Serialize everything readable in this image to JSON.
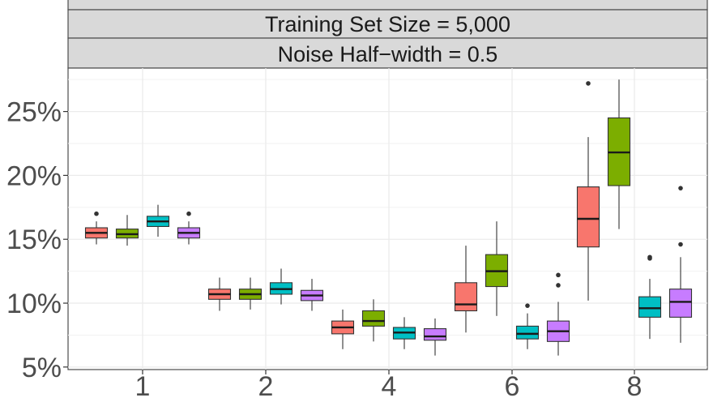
{
  "chart_data": {
    "type": "boxplot",
    "facet_strips": [
      "Training Set Size = 5,000",
      "Noise Half−width = 0.5"
    ],
    "categories": [
      "1",
      "2",
      "4",
      "6",
      "8"
    ],
    "y_tick_labels": [
      "5%",
      "10%",
      "15%",
      "20%",
      "25%"
    ],
    "y_ticks": [
      5,
      10,
      15,
      20,
      25
    ],
    "ylim": [
      4.8,
      28.4
    ],
    "grid": true,
    "legend": "none",
    "series": [
      {
        "color": "#f8766d",
        "boxes": [
          {
            "min": 14.6,
            "q1": 15.1,
            "median": 15.5,
            "q3": 15.9,
            "max": 16.4,
            "outliers": [
              17.0
            ]
          },
          {
            "min": 9.4,
            "q1": 10.3,
            "median": 10.7,
            "q3": 11.1,
            "max": 12.0,
            "outliers": []
          },
          {
            "min": 6.4,
            "q1": 7.6,
            "median": 8.1,
            "q3": 8.6,
            "max": 9.5,
            "outliers": []
          },
          {
            "min": 7.7,
            "q1": 9.4,
            "median": 9.9,
            "q3": 11.6,
            "max": 14.5,
            "outliers": []
          },
          {
            "min": 10.2,
            "q1": 14.4,
            "median": 16.6,
            "q3": 19.1,
            "max": 23.0,
            "outliers": [
              27.2
            ]
          }
        ]
      },
      {
        "color": "#7cae00",
        "boxes": [
          {
            "min": 14.5,
            "q1": 15.1,
            "median": 15.4,
            "q3": 15.8,
            "max": 16.9,
            "outliers": []
          },
          {
            "min": 9.5,
            "q1": 10.3,
            "median": 10.7,
            "q3": 11.1,
            "max": 12.0,
            "outliers": []
          },
          {
            "min": 7.0,
            "q1": 8.2,
            "median": 8.6,
            "q3": 9.4,
            "max": 10.3,
            "outliers": []
          },
          {
            "min": 9.0,
            "q1": 11.3,
            "median": 12.5,
            "q3": 13.8,
            "max": 16.4,
            "outliers": []
          },
          {
            "min": 15.8,
            "q1": 19.2,
            "median": 21.8,
            "q3": 24.5,
            "max": 27.5,
            "outliers": []
          }
        ]
      },
      {
        "color": "#00bfc4",
        "boxes": [
          {
            "min": 15.2,
            "q1": 16.0,
            "median": 16.4,
            "q3": 16.8,
            "max": 17.7,
            "outliers": []
          },
          {
            "min": 9.9,
            "q1": 10.7,
            "median": 11.1,
            "q3": 11.6,
            "max": 12.7,
            "outliers": []
          },
          {
            "min": 6.4,
            "q1": 7.2,
            "median": 7.7,
            "q3": 8.1,
            "max": 8.9,
            "outliers": []
          },
          {
            "min": 6.4,
            "q1": 7.2,
            "median": 7.6,
            "q3": 8.2,
            "max": 9.2,
            "outliers": [
              9.8
            ]
          },
          {
            "min": 7.2,
            "q1": 8.9,
            "median": 9.6,
            "q3": 10.5,
            "max": 11.9,
            "outliers": [
              13.5,
              13.6
            ]
          }
        ]
      },
      {
        "color": "#c77cff",
        "boxes": [
          {
            "min": 14.6,
            "q1": 15.1,
            "median": 15.5,
            "q3": 15.9,
            "max": 16.4,
            "outliers": [
              17.0
            ]
          },
          {
            "min": 9.4,
            "q1": 10.2,
            "median": 10.6,
            "q3": 11.0,
            "max": 11.9,
            "outliers": []
          },
          {
            "min": 5.9,
            "q1": 7.1,
            "median": 7.4,
            "q3": 8.0,
            "max": 8.8,
            "outliers": []
          },
          {
            "min": 5.9,
            "q1": 7.0,
            "median": 7.8,
            "q3": 8.6,
            "max": 10.1,
            "outliers": [
              11.4,
              12.2
            ]
          },
          {
            "min": 6.9,
            "q1": 8.9,
            "median": 10.1,
            "q3": 11.1,
            "max": 13.6,
            "outliers": [
              14.6,
              19.0
            ]
          }
        ]
      }
    ]
  }
}
